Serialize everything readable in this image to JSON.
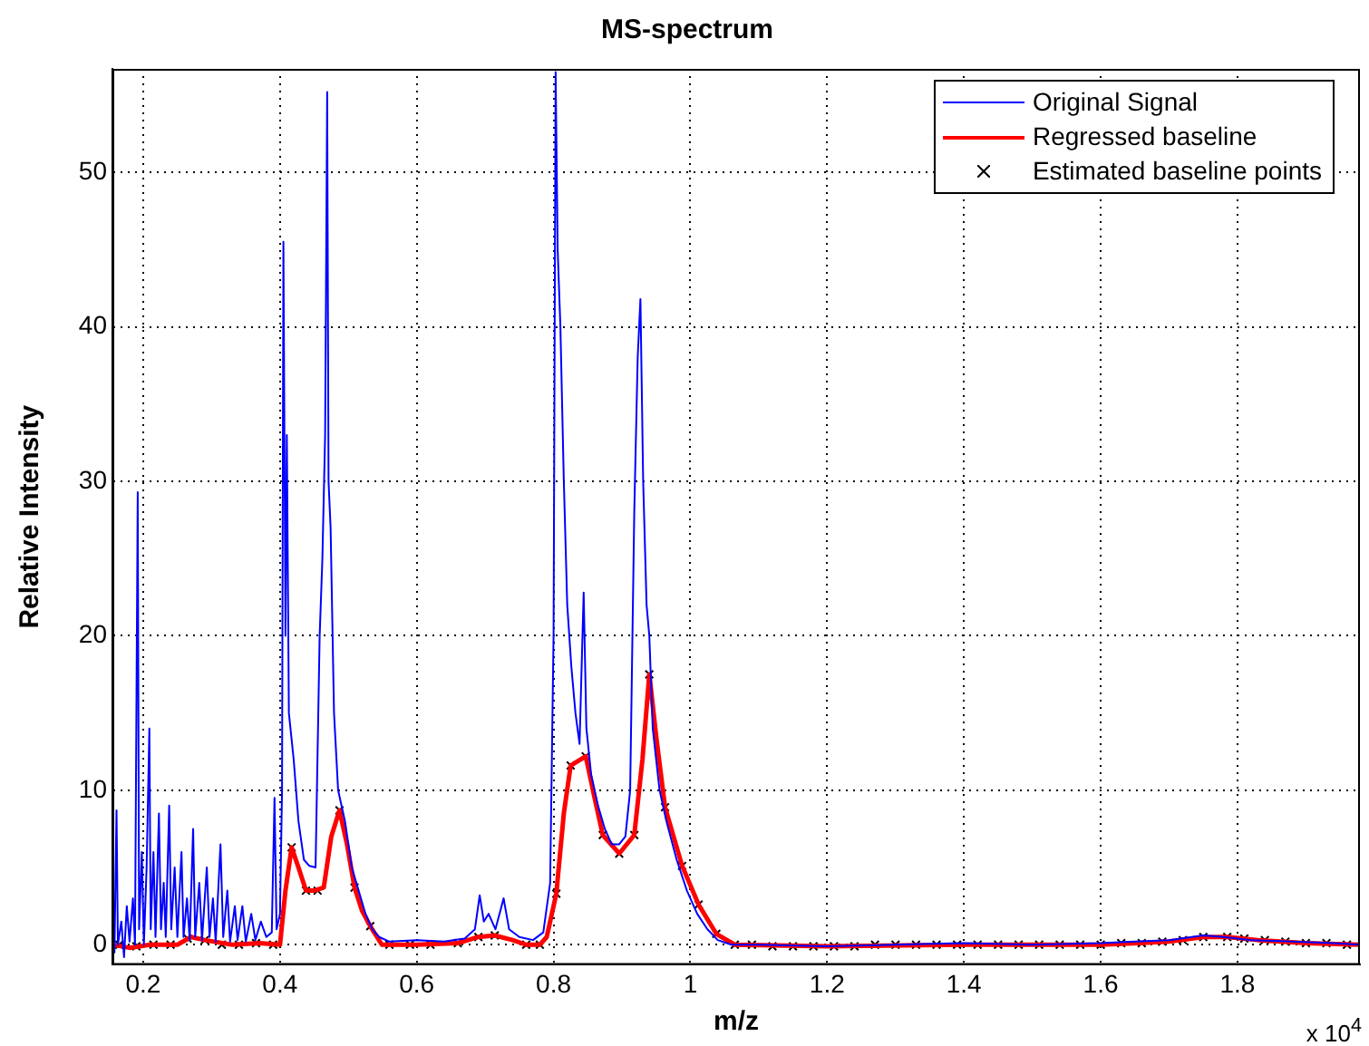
{
  "chart_data": {
    "type": "line",
    "title": "MS-spectrum",
    "xlabel": "m/z",
    "ylabel": "Relative Intensity",
    "annotations": [
      "x 10$^{4}$"
    ],
    "xlim": [
      0.155,
      1.979
    ],
    "ylim": [
      -1.3,
      56.7
    ],
    "xticks": [
      0.2,
      0.4,
      0.6,
      0.8,
      1,
      1.2,
      1.4,
      1.6,
      1.8
    ],
    "yticks": [
      0,
      10,
      20,
      30,
      40,
      50
    ],
    "grid": true,
    "legend": "top right",
    "series": [
      {
        "name": "Original Signal",
        "marker": "none",
        "color": "#0000ff",
        "x": [
          0.155,
          0.158,
          0.161,
          0.163,
          0.168,
          0.172,
          0.176,
          0.18,
          0.185,
          0.188,
          0.192,
          0.194,
          0.198,
          0.201,
          0.205,
          0.209,
          0.211,
          0.215,
          0.218,
          0.223,
          0.226,
          0.23,
          0.233,
          0.238,
          0.241,
          0.246,
          0.25,
          0.256,
          0.259,
          0.264,
          0.268,
          0.273,
          0.276,
          0.282,
          0.286,
          0.293,
          0.297,
          0.302,
          0.306,
          0.313,
          0.317,
          0.323,
          0.327,
          0.334,
          0.338,
          0.345,
          0.35,
          0.358,
          0.364,
          0.372,
          0.38,
          0.388,
          0.392,
          0.395,
          0.4,
          0.403,
          0.405,
          0.408,
          0.41,
          0.413,
          0.42,
          0.427,
          0.435,
          0.443,
          0.452,
          0.458,
          0.462,
          0.466,
          0.469,
          0.471,
          0.474,
          0.479,
          0.485,
          0.495,
          0.505,
          0.515,
          0.525,
          0.535,
          0.545,
          0.56,
          0.6,
          0.64,
          0.67,
          0.685,
          0.692,
          0.698,
          0.705,
          0.715,
          0.727,
          0.735,
          0.75,
          0.77,
          0.785,
          0.795,
          0.8,
          0.803,
          0.806,
          0.81,
          0.815,
          0.82,
          0.826,
          0.832,
          0.838,
          0.844,
          0.848,
          0.855,
          0.865,
          0.875,
          0.885,
          0.896,
          0.905,
          0.912,
          0.918,
          0.923,
          0.927,
          0.931,
          0.936,
          0.94,
          0.945,
          0.955,
          0.965,
          0.98,
          0.995,
          1.01,
          1.025,
          1.04,
          1.06,
          1.1,
          1.2,
          1.3,
          1.4,
          1.5,
          1.6,
          1.65,
          1.7,
          1.75,
          1.78,
          1.82,
          1.88,
          1.94,
          1.979
        ],
        "values": [
          0.5,
          -0.5,
          8.7,
          0,
          1.5,
          -0.8,
          2.5,
          0.2,
          3,
          0,
          29.3,
          1,
          6,
          0,
          5,
          14,
          1,
          6,
          0.5,
          8.5,
          1,
          4,
          0.5,
          9,
          1,
          5,
          0.5,
          6,
          0.5,
          3,
          0.3,
          7.5,
          0.5,
          4,
          0.3,
          5,
          0.5,
          3,
          0.2,
          6.5,
          0.5,
          3.5,
          0.2,
          2.5,
          0.3,
          2.5,
          0.2,
          2,
          0.3,
          1.5,
          0.5,
          0.8,
          9.5,
          1,
          2,
          10,
          45.5,
          20,
          33,
          15,
          12,
          8,
          5.5,
          5.1,
          5,
          20,
          25,
          33,
          55.2,
          30,
          27,
          15,
          10,
          8,
          5,
          3.5,
          2,
          1,
          0.5,
          0.2,
          0.3,
          0.2,
          0.4,
          1,
          3.2,
          1.5,
          2,
          1,
          3,
          1,
          0.5,
          0.3,
          0.8,
          4,
          20,
          56.5,
          45,
          40,
          30,
          22,
          18,
          15,
          13,
          22.8,
          14,
          11,
          9,
          7.5,
          6.5,
          6.5,
          7,
          10,
          28,
          38,
          41.8,
          30,
          22,
          20,
          14,
          10,
          8,
          5.5,
          3.5,
          2,
          1,
          0.3,
          0,
          0,
          -0.1,
          0,
          0.1,
          0,
          0.1,
          0.2,
          0.3,
          0.6,
          0.5,
          0.3,
          0.2,
          0.1,
          0
        ]
      },
      {
        "name": "Regressed baseline",
        "marker": "none",
        "color": "#ff0000",
        "x": [
          0.155,
          0.18,
          0.21,
          0.25,
          0.27,
          0.29,
          0.33,
          0.37,
          0.4,
          0.408,
          0.417,
          0.427,
          0.438,
          0.45,
          0.464,
          0.475,
          0.487,
          0.498,
          0.509,
          0.52,
          0.532,
          0.549,
          0.6,
          0.66,
          0.69,
          0.714,
          0.74,
          0.76,
          0.78,
          0.79,
          0.804,
          0.815,
          0.825,
          0.847,
          0.86,
          0.872,
          0.896,
          0.918,
          0.93,
          0.94,
          0.95,
          0.963,
          0.988,
          1.012,
          1.038,
          1.065,
          1.2,
          1.4,
          1.6,
          1.7,
          1.75,
          1.785,
          1.83,
          1.9,
          1.979
        ],
        "values": [
          0,
          -0.2,
          0,
          0,
          0.5,
          0.3,
          0,
          0.1,
          0,
          3.5,
          6.3,
          5,
          3.5,
          3.5,
          3.7,
          7,
          8.7,
          6.5,
          3.7,
          2.2,
          1.2,
          0,
          0,
          0.1,
          0.5,
          0.6,
          0.3,
          0,
          0,
          0.5,
          3.3,
          8.5,
          11.6,
          12.2,
          9.5,
          7.1,
          5.9,
          7.1,
          12,
          17.5,
          13.5,
          8.9,
          5.1,
          2.6,
          0.7,
          0,
          -0.1,
          0,
          0,
          0.2,
          0.5,
          0.5,
          0.3,
          0.1,
          0
        ]
      },
      {
        "name": "Estimated baseline points",
        "type": "scatter",
        "marker": "cross",
        "color": "#000000",
        "x": [
          0.165,
          0.19,
          0.215,
          0.24,
          0.265,
          0.29,
          0.315,
          0.34,
          0.365,
          0.39,
          0.417,
          0.438,
          0.455,
          0.487,
          0.509,
          0.532,
          0.56,
          0.59,
          0.62,
          0.66,
          0.69,
          0.714,
          0.76,
          0.78,
          0.804,
          0.825,
          0.847,
          0.872,
          0.896,
          0.918,
          0.94,
          0.963,
          0.988,
          1.012,
          1.038,
          1.065,
          1.09,
          1.12,
          1.15,
          1.18,
          1.21,
          1.24,
          1.27,
          1.3,
          1.33,
          1.36,
          1.39,
          1.42,
          1.45,
          1.48,
          1.51,
          1.54,
          1.57,
          1.6,
          1.63,
          1.66,
          1.69,
          1.72,
          1.75,
          1.785,
          1.81,
          1.84,
          1.87,
          1.9,
          1.93,
          1.96
        ],
        "values": [
          0,
          -0.1,
          0,
          0,
          0.4,
          0.3,
          0,
          0,
          0.1,
          0,
          6.3,
          3.5,
          3.5,
          8.7,
          3.7,
          1.2,
          0,
          0,
          0,
          0.1,
          0.5,
          0.6,
          0,
          0,
          3.3,
          11.6,
          12.2,
          7.1,
          5.9,
          7.1,
          17.5,
          8.9,
          5.1,
          2.6,
          0.7,
          0,
          0,
          -0.1,
          -0.1,
          -0.1,
          -0.1,
          -0.1,
          0,
          0,
          0,
          0,
          0,
          0,
          0,
          0,
          0,
          0,
          0,
          0,
          0.1,
          0.1,
          0.2,
          0.3,
          0.5,
          0.5,
          0.4,
          0.3,
          0.2,
          0.1,
          0.1,
          0
        ]
      }
    ]
  }
}
